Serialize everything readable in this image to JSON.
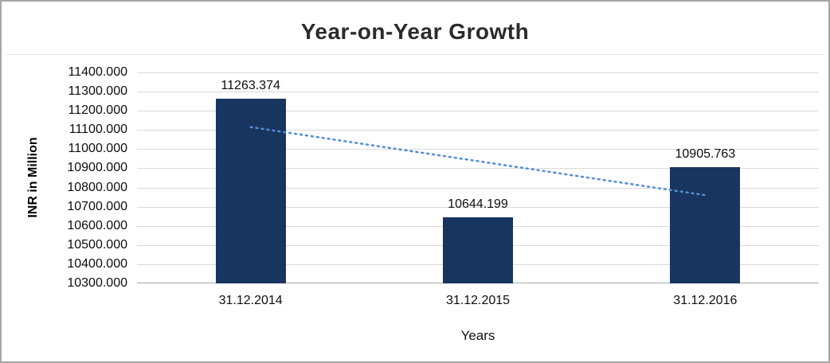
{
  "chart_data": {
    "type": "bar",
    "title": "Year-on-Year Growth",
    "xlabel": "Years",
    "ylabel": "INR in Million",
    "categories": [
      "31.12.2014",
      "31.12.2015",
      "31.12.2016"
    ],
    "values": [
      11263.374,
      10644.199,
      10905.763
    ],
    "value_labels": [
      "11263.374",
      "10644.199",
      "10905.763"
    ],
    "ylim": [
      10300,
      11400
    ],
    "ytick_step": 100,
    "ytick_decimals": 3,
    "grid": true,
    "legend": "none",
    "bar_color": "#17355E",
    "trendline": {
      "style": "dotted",
      "color": "#538dd5",
      "start_value": 11115,
      "end_value": 10760
    }
  }
}
